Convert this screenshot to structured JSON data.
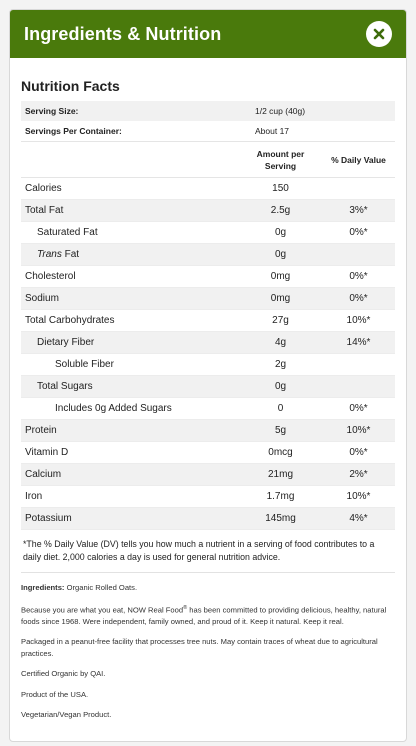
{
  "header": {
    "title": "Ingredients & Nutrition",
    "close_icon": "close-x-icon"
  },
  "colors": {
    "header_bg": "#4a7a0c",
    "row_stripe": "#f1f1f1"
  },
  "nutrition": {
    "title": "Nutrition Facts",
    "serving_size_label": "Serving Size:",
    "serving_size_value": "1/2 cup (40g)",
    "servings_per_container_label": "Servings Per Container:",
    "servings_per_container_value": "About 17",
    "col_amount_line1": "Amount per",
    "col_amount_line2": "Serving",
    "col_dv": "% Daily Value",
    "rows": [
      {
        "name": "Calories",
        "amount": "150",
        "dv": ""
      },
      {
        "name": "Total Fat",
        "amount": "2.5g",
        "dv": "3%*"
      },
      {
        "name": "Saturated Fat",
        "amount": "0g",
        "dv": "0%*"
      },
      {
        "name_italic": "Trans",
        "name_rest": " Fat",
        "amount": "0g",
        "dv": ""
      },
      {
        "name": "Cholesterol",
        "amount": "0mg",
        "dv": "0%*"
      },
      {
        "name": "Sodium",
        "amount": "0mg",
        "dv": "0%*"
      },
      {
        "name": "Total Carbohydrates",
        "amount": "27g",
        "dv": "10%*"
      },
      {
        "name": "Dietary Fiber",
        "amount": "4g",
        "dv": "14%*"
      },
      {
        "name": "Soluble Fiber",
        "amount": "2g",
        "dv": ""
      },
      {
        "name": "Total Sugars",
        "amount": "0g",
        "dv": ""
      },
      {
        "name": "Includes 0g Added Sugars",
        "amount": "0",
        "dv": "0%*"
      },
      {
        "name": "Protein",
        "amount": "5g",
        "dv": "10%*"
      },
      {
        "name": "Vitamin D",
        "amount": "0mcg",
        "dv": "0%*"
      },
      {
        "name": "Calcium",
        "amount": "21mg",
        "dv": "2%*"
      },
      {
        "name": "Iron",
        "amount": "1.7mg",
        "dv": "10%*"
      },
      {
        "name": "Potassium",
        "amount": "145mg",
        "dv": "4%*"
      }
    ],
    "footnote": "*The % Daily Value (DV) tells you how much a nutrient in a serving of food contributes to a daily diet. 2,000 calories a day is used for general nutrition advice."
  },
  "details": {
    "ingredients_label": "Ingredients:",
    "ingredients_value": " Organic Rolled Oats.",
    "about_part1": "Because you are what you eat, NOW Real Food",
    "about_reg": "®",
    "about_part2": " has been committed to providing delicious, healthy, natural foods since 1968. Were independent, family owned, and proud of it. Keep it natural. Keep it real.",
    "allergen": "Packaged in a peanut-free facility that processes tree nuts. May contain traces of wheat due to agricultural practices.",
    "certified": "Certified Organic by QAI.",
    "origin": "Product of the USA.",
    "diet": "Vegetarian/Vegan Product."
  }
}
